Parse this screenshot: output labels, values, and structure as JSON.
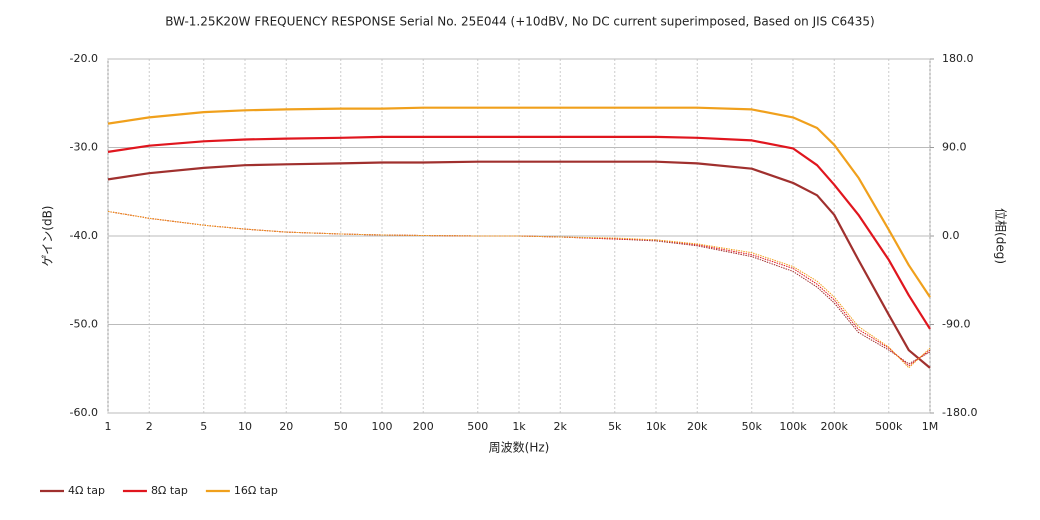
{
  "chart_data": {
    "type": "line",
    "title": "BW-1.25K20W FREQUENCY RESPONSE Serial No. 25E044 (+10dBV,  No DC current superimposed,  Based on JIS C6435)",
    "x_label": "周波数(Hz)",
    "y_label": "ゲイン(dB)",
    "y2_label": "位相(deg)",
    "xscale": "log",
    "grid": true,
    "legend": "bottom-left",
    "xlim": [
      1,
      1000000
    ],
    "xticks": [
      1,
      2,
      5,
      10,
      20,
      50,
      100,
      200,
      500,
      {
        "value": 1000,
        "label": "1k"
      },
      {
        "value": 2000,
        "label": "2k"
      },
      {
        "value": 5000,
        "label": "5k"
      },
      {
        "value": 10000,
        "label": "10k"
      },
      {
        "value": 20000,
        "label": "20k"
      },
      {
        "value": 50000,
        "label": "50k"
      },
      {
        "value": 100000,
        "label": "100k"
      },
      {
        "value": 200000,
        "label": "200k"
      },
      {
        "value": 500000,
        "label": "500k"
      },
      {
        "value": 1000000,
        "label": "1M"
      }
    ],
    "ylim": [
      -60,
      -20
    ],
    "yticks": [
      {
        "value": -60,
        "label": "-60.0"
      },
      {
        "value": -50,
        "label": "-50.0"
      },
      {
        "value": -40,
        "label": "-40.0"
      },
      {
        "value": -30,
        "label": "-30.0"
      },
      {
        "value": -20,
        "label": "-20.0"
      }
    ],
    "y2lim": [
      -180,
      180
    ],
    "y2ticks": [
      {
        "value": -180,
        "label": "-180.0"
      },
      {
        "value": -90,
        "label": "-90.0"
      },
      {
        "value": 0,
        "label": "0.0"
      },
      {
        "value": 90,
        "label": "90.0"
      },
      {
        "value": 180,
        "label": "180.0"
      }
    ],
    "x": [
      1,
      2,
      5,
      10,
      20,
      50,
      100,
      200,
      500,
      1000,
      2000,
      5000,
      10000,
      20000,
      50000,
      100000,
      150000,
      200000,
      300000,
      500000,
      700000,
      1000000
    ],
    "series": [
      {
        "name": "4Ω tap",
        "color": "#a0302e",
        "values": [
          -33.6,
          -32.9,
          -32.3,
          -32.0,
          -31.9,
          -31.8,
          -31.7,
          -31.7,
          -31.6,
          -31.6,
          -31.6,
          -31.6,
          -31.6,
          -31.8,
          -32.4,
          -34.0,
          -35.4,
          -37.6,
          -42.7,
          -48.9,
          -52.9,
          -54.9
        ]
      },
      {
        "name": "8Ω tap",
        "color": "#e0161e",
        "values": [
          -30.5,
          -29.8,
          -29.3,
          -29.1,
          -29.0,
          -28.9,
          -28.8,
          -28.8,
          -28.8,
          -28.8,
          -28.8,
          -28.8,
          -28.8,
          -28.9,
          -29.2,
          -30.1,
          -32.0,
          -34.2,
          -37.6,
          -42.7,
          -46.7,
          -50.5
        ]
      },
      {
        "name": "16Ω tap",
        "color": "#f0a01c",
        "values": [
          -27.3,
          -26.6,
          -26.0,
          -25.8,
          -25.7,
          -25.6,
          -25.6,
          -25.5,
          -25.5,
          -25.5,
          -25.5,
          -25.5,
          -25.5,
          -25.5,
          -25.7,
          -26.6,
          -27.8,
          -29.7,
          -33.4,
          -39.3,
          -43.3,
          -46.9
        ]
      },
      {
        "color": "#a0302e",
        "axis": "y2",
        "linestyle": "dotted",
        "values": [
          25,
          18,
          11,
          7,
          4,
          2,
          1,
          0.5,
          0,
          0,
          -1,
          -3,
          -5,
          -10,
          -21,
          -36,
          -52,
          -68,
          -98,
          -116,
          -130,
          -118
        ]
      },
      {
        "color": "#e0161e",
        "axis": "y2",
        "linestyle": "dotted",
        "values": [
          25,
          18,
          11,
          7,
          4,
          2,
          1,
          0.5,
          0,
          0,
          -1,
          -3,
          -4,
          -9,
          -19,
          -33,
          -49,
          -65,
          -95,
          -114,
          -132,
          -116
        ]
      },
      {
        "color": "#f0a01c",
        "axis": "y2",
        "linestyle": "dotted",
        "values": [
          25,
          18,
          11,
          7,
          4,
          2,
          1,
          0.5,
          0,
          0,
          -1,
          -2,
          -4,
          -8,
          -17,
          -31,
          -46,
          -62,
          -92,
          -113,
          -134,
          -114
        ]
      }
    ]
  }
}
